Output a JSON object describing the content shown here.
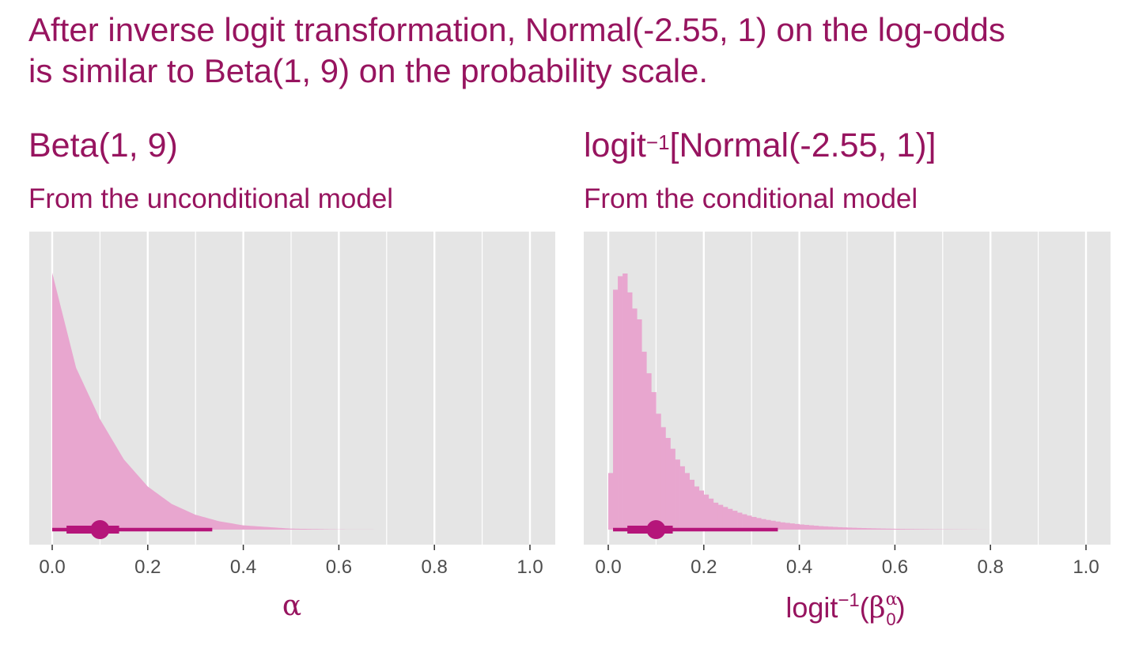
{
  "title_line1": "After inverse logit transformation, Normal(-2.55, 1) on the log-odds",
  "title_line2": "is similar to Beta(1, 9) on the probability scale.",
  "colors": {
    "title": "#97145f",
    "fill": "#e8a6cf",
    "interval": "#b5157a",
    "panel_bg": "#e5e5e5",
    "grid": "#ffffff",
    "tick_text": "#4d4d4d"
  },
  "panels": [
    {
      "title": "Beta(1, 9)",
      "subtitle": "From the unconditional model",
      "xlabel": "α"
    },
    {
      "title_main": "logit",
      "title_sup": "−1",
      "title_rest": "[Normal(-2.55, 1)]",
      "subtitle": "From the conditional model",
      "xlabel_main": "logit",
      "xlabel_sup": "−1",
      "xlabel_beta": "β",
      "xlabel_beta_sup": "α",
      "xlabel_beta_sub": "0"
    }
  ],
  "chart_data": [
    {
      "type": "area",
      "title": "Beta(1, 9)",
      "subtitle": "From the unconditional model",
      "xlabel": "α",
      "xlim": [
        0,
        1
      ],
      "xticks": [
        "0.0",
        "0.2",
        "0.4",
        "0.6",
        "0.8",
        "1.0"
      ],
      "density": {
        "x": [
          0.0,
          0.05,
          0.1,
          0.15,
          0.2,
          0.25,
          0.3,
          0.35,
          0.4,
          0.5,
          0.6,
          0.7
        ],
        "y": [
          9.0,
          5.67,
          3.87,
          2.46,
          1.51,
          0.9,
          0.52,
          0.29,
          0.15,
          0.035,
          0.006,
          0.0
        ]
      },
      "point_interval": {
        "median": 0.1,
        "inner": [
          0.03,
          0.14
        ],
        "outer": [
          0.0,
          0.335
        ]
      }
    },
    {
      "type": "bar",
      "title": "logit⁻¹[Normal(-2.55, 1)]",
      "subtitle": "From the conditional model",
      "xlabel": "logit⁻¹(β₀ᵅ)",
      "xlim": [
        0,
        1
      ],
      "xticks": [
        "0.0",
        "0.2",
        "0.4",
        "0.6",
        "0.8",
        "1.0"
      ],
      "histogram": {
        "bin_width": 0.01,
        "bin_start": 0.0,
        "counts": [
          2.1,
          8.9,
          9.4,
          9.5,
          8.8,
          8.2,
          7.8,
          6.6,
          5.8,
          5.1,
          4.3,
          3.8,
          3.4,
          3.0,
          2.6,
          2.35,
          2.1,
          1.85,
          1.6,
          1.45,
          1.3,
          1.15,
          1.0,
          0.92,
          0.84,
          0.77,
          0.7,
          0.63,
          0.57,
          0.52,
          0.47,
          0.43,
          0.39,
          0.36,
          0.33,
          0.3,
          0.27,
          0.25,
          0.23,
          0.21,
          0.19,
          0.175,
          0.16,
          0.145,
          0.13,
          0.12,
          0.11,
          0.1,
          0.09,
          0.083,
          0.076,
          0.07,
          0.064,
          0.058,
          0.053,
          0.048,
          0.044,
          0.04,
          0.036,
          0.033,
          0.03,
          0.027,
          0.024,
          0.022,
          0.02,
          0.018,
          0.016,
          0.014,
          0.012,
          0.011,
          0.01,
          0.009,
          0.008,
          0.007,
          0.006,
          0.005,
          0.004,
          0.003,
          0.002,
          0.001
        ]
      },
      "point_interval": {
        "median": 0.1,
        "inner": [
          0.04,
          0.135
        ],
        "outer": [
          0.01,
          0.355
        ]
      }
    }
  ]
}
